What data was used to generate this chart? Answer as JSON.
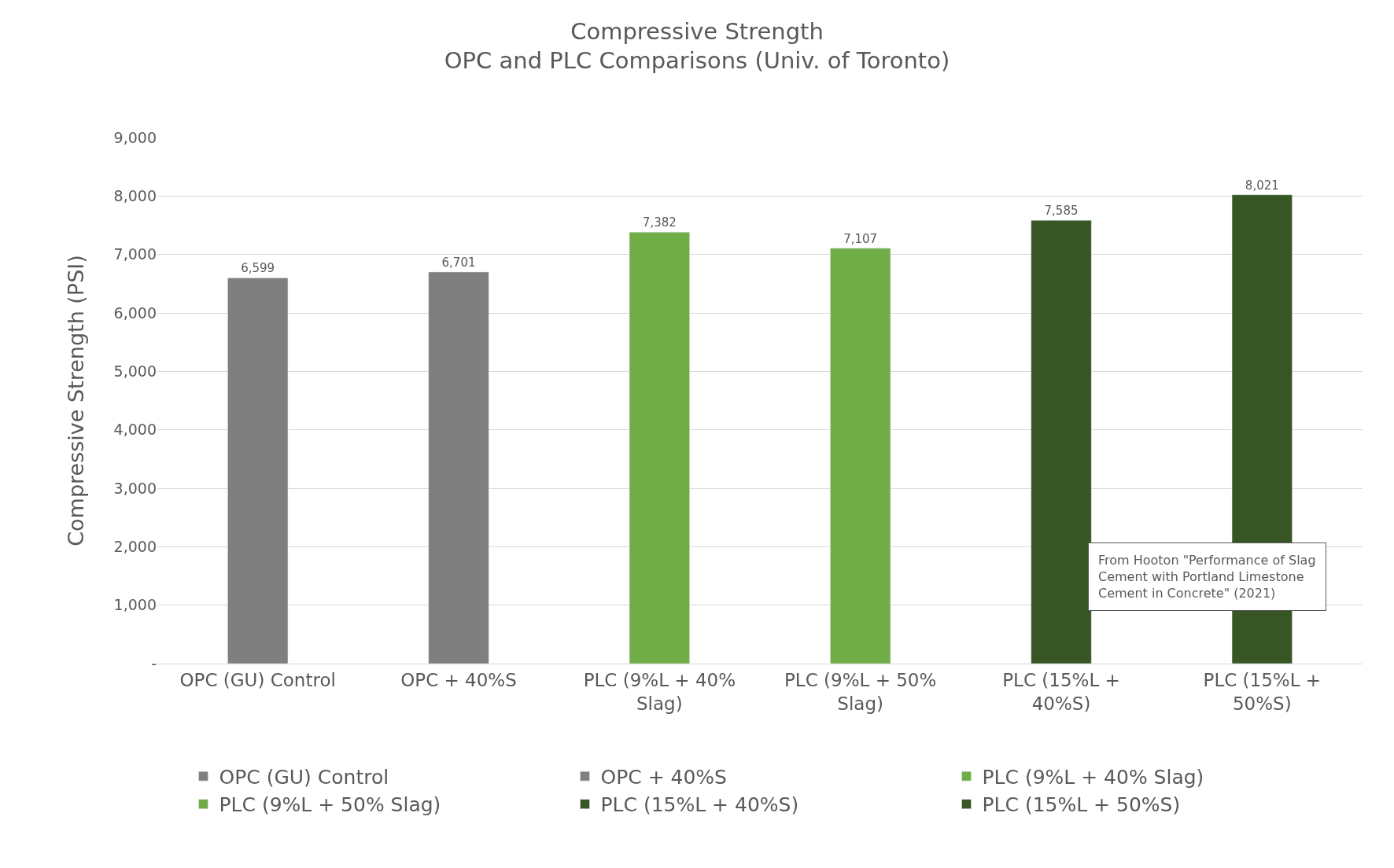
{
  "chart_data": {
    "type": "bar",
    "title": "Compressive Strength",
    "subtitle": "OPC and PLC Comparisons (Univ. of Toronto)",
    "ylabel": "Compressive Strength (PSI)",
    "categories": [
      "OPC (GU) Control",
      "OPC + 40%S",
      "PLC (9%L + 40% Slag)",
      "PLC (9%L + 50% Slag)",
      "PLC (15%L + 40%S)",
      "PLC (15%L + 50%S)"
    ],
    "series": [
      {
        "name": "OPC (GU) Control",
        "color": "#7f7f7f",
        "values": [
          6599,
          null,
          null,
          null,
          null,
          null
        ],
        "value_labels": [
          "6,599",
          null,
          null,
          null,
          null,
          null
        ]
      },
      {
        "name": "OPC + 40%S",
        "color": "#7f7f7f",
        "values": [
          null,
          6701,
          null,
          null,
          null,
          null
        ],
        "value_labels": [
          null,
          "6,701",
          null,
          null,
          null,
          null
        ]
      },
      {
        "name": "PLC (9%L + 40% Slag)",
        "color": "#70ad47",
        "values": [
          null,
          null,
          7382,
          null,
          null,
          null
        ],
        "value_labels": [
          null,
          null,
          "7,382",
          null,
          null,
          null
        ]
      },
      {
        "name": "PLC (9%L + 50% Slag)",
        "color": "#70ad47",
        "values": [
          null,
          null,
          null,
          7107,
          null,
          null
        ],
        "value_labels": [
          null,
          null,
          null,
          "7,107",
          null,
          null
        ]
      },
      {
        "name": "PLC (15%L + 40%S)",
        "color": "#375623",
        "values": [
          null,
          null,
          null,
          null,
          7585,
          null
        ],
        "value_labels": [
          null,
          null,
          null,
          null,
          "7,585",
          null
        ]
      },
      {
        "name": "PLC (15%L + 50%S)",
        "color": "#375623",
        "values": [
          null,
          null,
          null,
          null,
          null,
          8021
        ],
        "value_labels": [
          null,
          null,
          null,
          null,
          null,
          "8,021"
        ]
      }
    ],
    "ylim": [
      0,
      9000
    ],
    "yticks": [
      {
        "value": 0,
        "label": "-"
      },
      {
        "value": 1000,
        "label": "1,000"
      },
      {
        "value": 2000,
        "label": "2,000"
      },
      {
        "value": 3000,
        "label": "3,000"
      },
      {
        "value": 4000,
        "label": "4,000"
      },
      {
        "value": 5000,
        "label": "5,000"
      },
      {
        "value": 6000,
        "label": "6,000"
      },
      {
        "value": 7000,
        "label": "7,000"
      },
      {
        "value": 8000,
        "label": "8,000"
      },
      {
        "value": 9000,
        "label": "9,000"
      }
    ],
    "grid": "y",
    "legend": "bottom",
    "annotations": [
      "From Hooton \"Performance of Slag Cement with Portland Limestone Cement in Concrete\" (2021)"
    ]
  }
}
